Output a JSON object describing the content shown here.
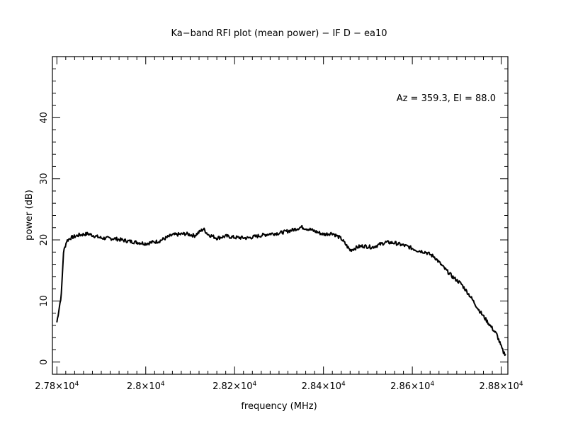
{
  "chart_data": {
    "type": "line",
    "title": "Ka−band RFI plot (mean power) − IF D − ea10",
    "xlabel": "frequency (MHz)",
    "ylabel": "power (dB)",
    "annotation": "Az = 359.3, El = 88.0",
    "xlim": [
      27790,
      28815
    ],
    "ylim": [
      -2,
      50
    ],
    "xticks": [
      {
        "v": 27800,
        "m": "2.78",
        "e": "4"
      },
      {
        "v": 28000,
        "m": "2.8",
        "e": "4"
      },
      {
        "v": 28200,
        "m": "2.82",
        "e": "4"
      },
      {
        "v": 28400,
        "m": "2.84",
        "e": "4"
      },
      {
        "v": 28600,
        "m": "2.86",
        "e": "4"
      },
      {
        "v": 28800,
        "m": "2.88",
        "e": "4"
      }
    ],
    "xsep": "×10",
    "yticks": [
      0,
      10,
      20,
      30,
      40
    ],
    "series": [
      {
        "color": "#000000",
        "x": [
          27800,
          27810,
          27815,
          27822,
          27830,
          27850,
          27870,
          27900,
          27930,
          27960,
          28000,
          28030,
          28060,
          28090,
          28110,
          28130,
          28140,
          28160,
          28180,
          28200,
          28230,
          28250,
          28280,
          28300,
          28330,
          28350,
          28370,
          28400,
          28420,
          28440,
          28460,
          28480,
          28490,
          28510,
          28540,
          28560,
          28590,
          28610,
          28630,
          28650,
          28670,
          28690,
          28710,
          28730,
          28750,
          28770,
          28790,
          28800,
          28805,
          28810
        ],
        "y": [
          6.5,
          11,
          18,
          19.8,
          20.3,
          20.8,
          21.0,
          20.3,
          20.2,
          19.8,
          19.4,
          19.8,
          20.8,
          21.0,
          20.7,
          21.8,
          20.9,
          20.3,
          20.6,
          20.4,
          20.3,
          20.6,
          21.0,
          21.1,
          21.6,
          22.1,
          21.7,
          20.9,
          21.1,
          20.2,
          18.3,
          18.9,
          19.0,
          18.8,
          19.6,
          19.5,
          18.9,
          18.3,
          18.0,
          17.2,
          15.5,
          14.0,
          12.8,
          10.8,
          8.5,
          6.5,
          4.5,
          2.5,
          1.6,
          1.3
        ]
      }
    ],
    "grid": false,
    "legend": "none"
  }
}
